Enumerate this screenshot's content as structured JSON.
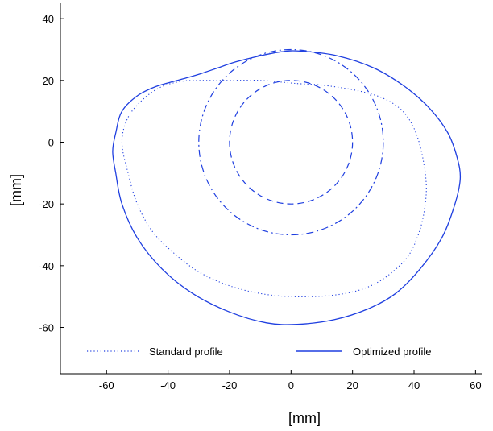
{
  "chart_data": {
    "type": "line",
    "title": "",
    "xlabel": "[mm]",
    "ylabel": "[mm]",
    "xlim": [
      -75,
      62
    ],
    "ylim": [
      -75,
      45
    ],
    "xticks": [
      -60,
      -40,
      -20,
      0,
      20,
      40,
      60
    ],
    "yticks": [
      -60,
      -40,
      -20,
      0,
      20,
      40
    ],
    "grid": false,
    "legend": {
      "placement": "bottom",
      "entries": [
        "Standard profile",
        "Optimized profile"
      ]
    },
    "colors": {
      "series": "#1f3fe0",
      "axes": "#000000"
    },
    "series": [
      {
        "name": "Standard profile",
        "style": "dotted",
        "x": [
          2,
          10,
          20,
          28,
          34,
          38,
          41,
          43,
          44,
          43,
          41,
          38,
          33,
          27,
          20,
          11,
          0,
          -10,
          -20,
          -30,
          -38,
          -45,
          -50,
          -53,
          -55,
          -53,
          -48,
          -42,
          -35,
          -28,
          -20,
          -10,
          2
        ],
        "y": [
          19,
          18.5,
          17,
          15,
          12,
          8,
          2,
          -6,
          -15,
          -24,
          -31,
          -37,
          -42,
          -46,
          -48.5,
          -49.8,
          -50,
          -49,
          -46.5,
          -42,
          -36,
          -29,
          -20,
          -10,
          0,
          8,
          14,
          18,
          19.8,
          20,
          20,
          20,
          19
        ]
      },
      {
        "name": "Optimized profile",
        "style": "solid",
        "x": [
          3,
          15,
          27,
          37,
          45,
          51,
          54,
          55,
          53,
          49,
          42,
          34,
          25,
          14,
          2,
          -8,
          -20,
          -32,
          -42,
          -50,
          -55,
          -57,
          -58,
          -57,
          -55,
          -50,
          -44,
          -37,
          -30,
          -24,
          -18,
          -10,
          -3,
          3
        ],
        "y": [
          29.5,
          28,
          24,
          18,
          11,
          3,
          -5,
          -12,
          -21,
          -31,
          -41,
          -49,
          -54,
          -57.5,
          -59,
          -58.5,
          -55,
          -49,
          -41,
          -31,
          -20,
          -10,
          -3,
          3,
          10,
          15,
          18,
          20,
          22,
          24,
          26,
          28,
          29.3,
          29.5
        ]
      }
    ],
    "reference_circles": [
      {
        "style": "dashed",
        "center": [
          0,
          0
        ],
        "radius": 20
      },
      {
        "style": "dashdot",
        "center": [
          0,
          0
        ],
        "radius": 30
      }
    ]
  }
}
